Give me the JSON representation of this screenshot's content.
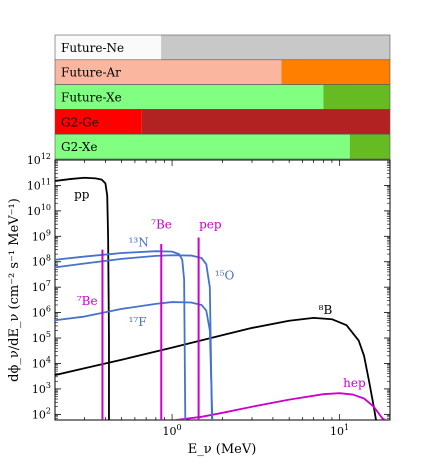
{
  "chart_data": {
    "type": "line",
    "xlabel": "E_ν (MeV)",
    "ylabel": "dϕ_ν/dE_ν (cm⁻² s⁻¹ MeV⁻¹)",
    "x_scale": "log",
    "y_scale": "log",
    "xlim": [
      0.2,
      20
    ],
    "ylim": [
      60,
      1000000000000.0
    ],
    "x_ticks": [
      {
        "value": 1,
        "base": "10",
        "exp": "0"
      },
      {
        "value": 10,
        "base": "10",
        "exp": "1"
      }
    ],
    "y_ticks": [
      {
        "value": 100,
        "base": "10",
        "exp": "2"
      },
      {
        "value": 1000,
        "base": "10",
        "exp": "3"
      },
      {
        "value": 10000,
        "base": "10",
        "exp": "4"
      },
      {
        "value": 100000,
        "base": "10",
        "exp": "5"
      },
      {
        "value": 1000000,
        "base": "10",
        "exp": "6"
      },
      {
        "value": 10000000,
        "base": "10",
        "exp": "7"
      },
      {
        "value": 100000000,
        "base": "10",
        "exp": "8"
      },
      {
        "value": 1000000000,
        "base": "10",
        "exp": "9"
      },
      {
        "value": 10000000000,
        "base": "10",
        "exp": "10"
      },
      {
        "value": 100000000000,
        "base": "10",
        "exp": "11"
      },
      {
        "value": 1000000000000,
        "base": "10",
        "exp": "12"
      }
    ],
    "series": [
      {
        "name": "pp",
        "color": "#000000",
        "points": [
          [
            0.2,
            150000000000.0
          ],
          [
            0.25,
            180000000000.0
          ],
          [
            0.3,
            200000000000.0
          ],
          [
            0.35,
            190000000000.0
          ],
          [
            0.38,
            170000000000.0
          ],
          [
            0.4,
            120000000000.0
          ],
          [
            0.41,
            40000000000.0
          ],
          [
            0.415,
            1000000000.0
          ],
          [
            0.42,
            100000.0
          ],
          [
            0.42,
            60
          ]
        ]
      },
      {
        "name": "⁸B",
        "color": "#000000",
        "points": [
          [
            0.2,
            3500.0
          ],
          [
            0.3,
            6500.0
          ],
          [
            0.5,
            14000.0
          ],
          [
            1,
            42000.0
          ],
          [
            2,
            130000.0
          ],
          [
            3,
            250000.0
          ],
          [
            5,
            480000.0
          ],
          [
            7,
            620000.0
          ],
          [
            9,
            550000.0
          ],
          [
            11,
            320000.0
          ],
          [
            13,
            80000.0
          ],
          [
            14,
            20000.0
          ],
          [
            15,
            2000.0
          ],
          [
            16,
            200
          ],
          [
            16.5,
            60
          ]
        ]
      },
      {
        "name": "hep",
        "color": "#cc00cc",
        "points": [
          [
            1.05,
            60
          ],
          [
            1.5,
            80
          ],
          [
            2,
            115
          ],
          [
            3,
            200
          ],
          [
            5,
            380
          ],
          [
            8,
            620
          ],
          [
            10,
            680
          ],
          [
            12,
            600
          ],
          [
            14,
            420
          ],
          [
            16,
            200
          ],
          [
            18,
            70
          ],
          [
            18.7,
            60
          ]
        ]
      },
      {
        "name": "¹³N",
        "color": "#4472cc",
        "points": [
          [
            0.2,
            120000000.0
          ],
          [
            0.3,
            160000000.0
          ],
          [
            0.5,
            220000000.0
          ],
          [
            0.8,
            260000000.0
          ],
          [
            1.0,
            250000000.0
          ],
          [
            1.1,
            200000000.0
          ],
          [
            1.15,
            120000000.0
          ],
          [
            1.18,
            20000000.0
          ],
          [
            1.199,
            60
          ]
        ]
      },
      {
        "name": "¹⁵O",
        "color": "#4472cc",
        "points": [
          [
            0.2,
            60000000.0
          ],
          [
            0.3,
            85000000.0
          ],
          [
            0.5,
            130000000.0
          ],
          [
            0.8,
            170000000.0
          ],
          [
            1.0,
            180000000.0
          ],
          [
            1.3,
            175000000.0
          ],
          [
            1.5,
            140000000.0
          ],
          [
            1.6,
            80000000.0
          ],
          [
            1.68,
            10000000.0
          ],
          [
            1.73,
            60
          ]
        ]
      },
      {
        "name": "¹⁷F",
        "color": "#4472cc",
        "points": [
          [
            0.2,
            500000.0
          ],
          [
            0.3,
            700000.0
          ],
          [
            0.5,
            1400000.0
          ],
          [
            0.8,
            2200000.0
          ],
          [
            1.0,
            2600000.0
          ],
          [
            1.3,
            2500000.0
          ],
          [
            1.5,
            2000000.0
          ],
          [
            1.6,
            1200000.0
          ],
          [
            1.68,
            200000.0
          ],
          [
            1.74,
            60
          ]
        ]
      }
    ],
    "lines_vertical": [
      {
        "name": "⁷Be",
        "x": 0.384,
        "ymin": 60,
        "ymax": 300000000.0,
        "color": "#cc00cc"
      },
      {
        "name": "⁷Be",
        "x": 0.862,
        "ymin": 60,
        "ymax": 500000000.0,
        "color": "#cc00cc"
      },
      {
        "name": "pep",
        "x": 1.44,
        "ymin": 60,
        "ymax": 900000000.0,
        "color": "#cc00cc"
      }
    ],
    "labels": [
      {
        "text": "pp",
        "color": "#000000",
        "x": 0.26,
        "y": 30000000000.0
      },
      {
        "text": "⁷Be",
        "color": "#cc00cc",
        "x": 0.75,
        "y": 2000000000.0
      },
      {
        "text": "pep",
        "color": "#cc00cc",
        "x": 1.45,
        "y": 2000000000.0
      },
      {
        "text": "¹³N",
        "color": "#4472cc",
        "x": 0.55,
        "y": 400000000.0
      },
      {
        "text": "⁷Be",
        "color": "#cc00cc",
        "x": 0.27,
        "y": 2000000.0
      },
      {
        "text": "¹⁵O",
        "color": "#4472cc",
        "x": 1.8,
        "y": 20000000.0
      },
      {
        "text": "¹⁷F",
        "color": "#4472cc",
        "x": 0.55,
        "y": 300000.0
      },
      {
        "text": "⁸B",
        "color": "#000000",
        "x": 7.5,
        "y": 900000.0
      },
      {
        "text": "hep",
        "color": "#cc00cc",
        "x": 10.5,
        "y": 1200.0
      }
    ],
    "thresholds": [
      {
        "name": "Future-Ne",
        "fill": "#fafafa",
        "excluded_fill": "#c8c8c8",
        "threshold": 0.86
      },
      {
        "name": "Future-Ar",
        "fill": "#fab69f",
        "excluded_fill": "#ff8000",
        "threshold": 4.5
      },
      {
        "name": "Future-Xe",
        "fill": "#80ff80",
        "excluded_fill": "#66bb22",
        "threshold": 8.0
      },
      {
        "name": "G2-Ge",
        "fill": "#ff0000",
        "excluded_fill": "#b22222",
        "threshold": 0.66
      },
      {
        "name": "G2-Xe",
        "fill": "#80ff80",
        "excluded_fill": "#66bb22",
        "threshold": 11.5
      }
    ]
  }
}
